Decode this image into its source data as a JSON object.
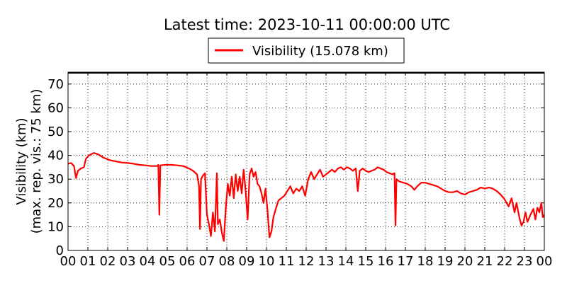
{
  "chart_data": {
    "type": "line",
    "title": "Latest time: 2023-10-11 00:00:00 UTC",
    "ylabel_line1": "Visibility (km)",
    "ylabel_line2": "(max. rep. vis.: 75 km)",
    "xlabel": "",
    "ylim": [
      0,
      75
    ],
    "xlim": [
      0,
      24
    ],
    "yticks": [
      0,
      10,
      20,
      30,
      40,
      50,
      60,
      70
    ],
    "xticks": [
      "00",
      "01",
      "02",
      "03",
      "04",
      "05",
      "06",
      "07",
      "08",
      "09",
      "10",
      "11",
      "12",
      "13",
      "14",
      "15",
      "16",
      "17",
      "18",
      "19",
      "20",
      "21",
      "22",
      "23",
      "00"
    ],
    "grid": true,
    "grid_style": "dotted",
    "legend_position": "top-center",
    "series": [
      {
        "name": "Visibility (15.078 km)",
        "color": "#ff0000",
        "x_unit": "hours (UTC)",
        "points": [
          [
            0.0,
            36.5
          ],
          [
            0.15,
            36.8
          ],
          [
            0.3,
            35.5
          ],
          [
            0.4,
            30.5
          ],
          [
            0.5,
            33.5
          ],
          [
            0.65,
            34.5
          ],
          [
            0.8,
            35.0
          ],
          [
            0.9,
            38.5
          ],
          [
            1.05,
            40.0
          ],
          [
            1.3,
            41.0
          ],
          [
            1.5,
            40.5
          ],
          [
            1.8,
            39.0
          ],
          [
            2.1,
            38.0
          ],
          [
            2.4,
            37.5
          ],
          [
            2.7,
            37.0
          ],
          [
            3.0,
            36.8
          ],
          [
            3.3,
            36.5
          ],
          [
            3.6,
            36.0
          ],
          [
            3.9,
            35.8
          ],
          [
            4.2,
            35.5
          ],
          [
            4.5,
            35.5
          ],
          [
            4.55,
            36.0
          ],
          [
            4.6,
            15.0
          ],
          [
            4.65,
            35.8
          ],
          [
            4.9,
            36.0
          ],
          [
            5.2,
            36.0
          ],
          [
            5.5,
            35.8
          ],
          [
            5.8,
            35.5
          ],
          [
            6.1,
            34.5
          ],
          [
            6.3,
            33.5
          ],
          [
            6.5,
            32.0
          ],
          [
            6.6,
            27.0
          ],
          [
            6.65,
            9.0
          ],
          [
            6.7,
            30.0
          ],
          [
            6.8,
            31.5
          ],
          [
            6.9,
            32.5
          ],
          [
            7.0,
            15.0
          ],
          [
            7.1,
            11.0
          ],
          [
            7.2,
            6.0
          ],
          [
            7.3,
            16.0
          ],
          [
            7.4,
            8.0
          ],
          [
            7.5,
            32.5
          ],
          [
            7.55,
            11.0
          ],
          [
            7.65,
            13.0
          ],
          [
            7.75,
            7.5
          ],
          [
            7.85,
            4.0
          ],
          [
            7.95,
            18.0
          ],
          [
            8.05,
            28.0
          ],
          [
            8.15,
            23.0
          ],
          [
            8.25,
            31.0
          ],
          [
            8.35,
            22.0
          ],
          [
            8.45,
            32.0
          ],
          [
            8.55,
            25.0
          ],
          [
            8.65,
            31.0
          ],
          [
            8.75,
            24.0
          ],
          [
            8.85,
            34.0
          ],
          [
            8.95,
            25.0
          ],
          [
            9.05,
            13.0
          ],
          [
            9.15,
            32.0
          ],
          [
            9.25,
            34.5
          ],
          [
            9.35,
            31.0
          ],
          [
            9.45,
            33.0
          ],
          [
            9.55,
            28.0
          ],
          [
            9.65,
            27.0
          ],
          [
            9.75,
            24.0
          ],
          [
            9.85,
            20.0
          ],
          [
            9.95,
            26.0
          ],
          [
            10.05,
            17.0
          ],
          [
            10.15,
            5.5
          ],
          [
            10.25,
            8.0
          ],
          [
            10.35,
            14.0
          ],
          [
            10.45,
            17.0
          ],
          [
            10.6,
            21.0
          ],
          [
            10.75,
            22.0
          ],
          [
            10.9,
            23.0
          ],
          [
            11.05,
            25.0
          ],
          [
            11.2,
            27.0
          ],
          [
            11.35,
            24.0
          ],
          [
            11.5,
            26.0
          ],
          [
            11.65,
            25.0
          ],
          [
            11.8,
            27.0
          ],
          [
            11.95,
            23.0
          ],
          [
            12.1,
            30.0
          ],
          [
            12.25,
            33.0
          ],
          [
            12.4,
            30.0
          ],
          [
            12.55,
            32.0
          ],
          [
            12.7,
            34.0
          ],
          [
            12.85,
            31.0
          ],
          [
            13.0,
            32.0
          ],
          [
            13.15,
            33.0
          ],
          [
            13.3,
            34.0
          ],
          [
            13.45,
            33.0
          ],
          [
            13.6,
            34.5
          ],
          [
            13.75,
            35.0
          ],
          [
            13.9,
            34.0
          ],
          [
            14.05,
            35.0
          ],
          [
            14.2,
            34.5
          ],
          [
            14.35,
            33.5
          ],
          [
            14.5,
            34.5
          ],
          [
            14.6,
            25.0
          ],
          [
            14.7,
            33.5
          ],
          [
            14.85,
            34.5
          ],
          [
            15.0,
            33.5
          ],
          [
            15.15,
            33.0
          ],
          [
            15.3,
            33.5
          ],
          [
            15.45,
            34.0
          ],
          [
            15.6,
            35.0
          ],
          [
            15.75,
            34.5
          ],
          [
            15.9,
            34.0
          ],
          [
            16.05,
            33.0
          ],
          [
            16.2,
            32.5
          ],
          [
            16.35,
            32.0
          ],
          [
            16.45,
            32.5
          ],
          [
            16.5,
            10.5
          ],
          [
            16.55,
            30.0
          ],
          [
            16.7,
            29.0
          ],
          [
            16.9,
            28.5
          ],
          [
            17.1,
            28.0
          ],
          [
            17.3,
            27.0
          ],
          [
            17.45,
            25.5
          ],
          [
            17.6,
            27.0
          ],
          [
            17.8,
            28.5
          ],
          [
            18.0,
            28.5
          ],
          [
            18.2,
            28.0
          ],
          [
            18.4,
            27.5
          ],
          [
            18.6,
            27.0
          ],
          [
            18.8,
            26.0
          ],
          [
            19.0,
            25.0
          ],
          [
            19.2,
            24.5
          ],
          [
            19.4,
            24.5
          ],
          [
            19.6,
            25.0
          ],
          [
            19.8,
            24.0
          ],
          [
            20.0,
            23.5
          ],
          [
            20.2,
            24.5
          ],
          [
            20.4,
            25.0
          ],
          [
            20.6,
            25.5
          ],
          [
            20.8,
            26.5
          ],
          [
            21.0,
            26.0
          ],
          [
            21.2,
            26.5
          ],
          [
            21.4,
            26.0
          ],
          [
            21.6,
            25.0
          ],
          [
            21.8,
            23.5
          ],
          [
            22.0,
            21.5
          ],
          [
            22.2,
            18.5
          ],
          [
            22.35,
            22.0
          ],
          [
            22.5,
            16.0
          ],
          [
            22.6,
            20.0
          ],
          [
            22.75,
            13.5
          ],
          [
            22.85,
            10.5
          ],
          [
            22.95,
            12.0
          ],
          [
            23.05,
            16.0
          ],
          [
            23.15,
            12.0
          ],
          [
            23.3,
            15.0
          ],
          [
            23.45,
            17.5
          ],
          [
            23.55,
            13.0
          ],
          [
            23.65,
            18.0
          ],
          [
            23.75,
            16.0
          ],
          [
            23.85,
            20.0
          ],
          [
            23.92,
            14.0
          ],
          [
            24.0,
            15.0
          ]
        ]
      }
    ]
  }
}
